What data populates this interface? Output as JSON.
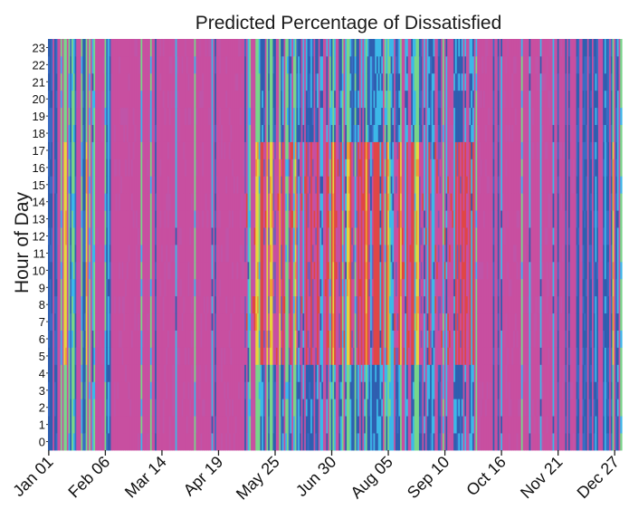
{
  "chart_data": {
    "type": "heatmap",
    "title": "Predicted Percentage of Dissatisfied",
    "xlabel": "",
    "ylabel": "Hour of Day",
    "x_tick_labels": [
      "Jan 01",
      "Feb 06",
      "Mar 14",
      "Apr 19",
      "May 25",
      "Jun 30",
      "Aug 05",
      "Sep 10",
      "Oct 16",
      "Nov 21",
      "Dec 27"
    ],
    "x_tick_day_of_year": [
      1,
      37,
      73,
      109,
      145,
      181,
      217,
      253,
      289,
      325,
      361
    ],
    "x_range_days": [
      1,
      365
    ],
    "y_tick_labels": [
      "0",
      "1",
      "2",
      "3",
      "4",
      "5",
      "6",
      "7",
      "8",
      "9",
      "10",
      "11",
      "12",
      "13",
      "14",
      "15",
      "16",
      "17",
      "18",
      "19",
      "20",
      "21",
      "22",
      "23"
    ],
    "y_range_hours": [
      0,
      23
    ],
    "colorscale": [
      "#2f5fb0",
      "#4a7ad0",
      "#3cb8e8",
      "#78d68a",
      "#e8d43c",
      "#e04646",
      "#c54ea6",
      "#c84fa0"
    ],
    "legend": "none",
    "grid": false
  }
}
